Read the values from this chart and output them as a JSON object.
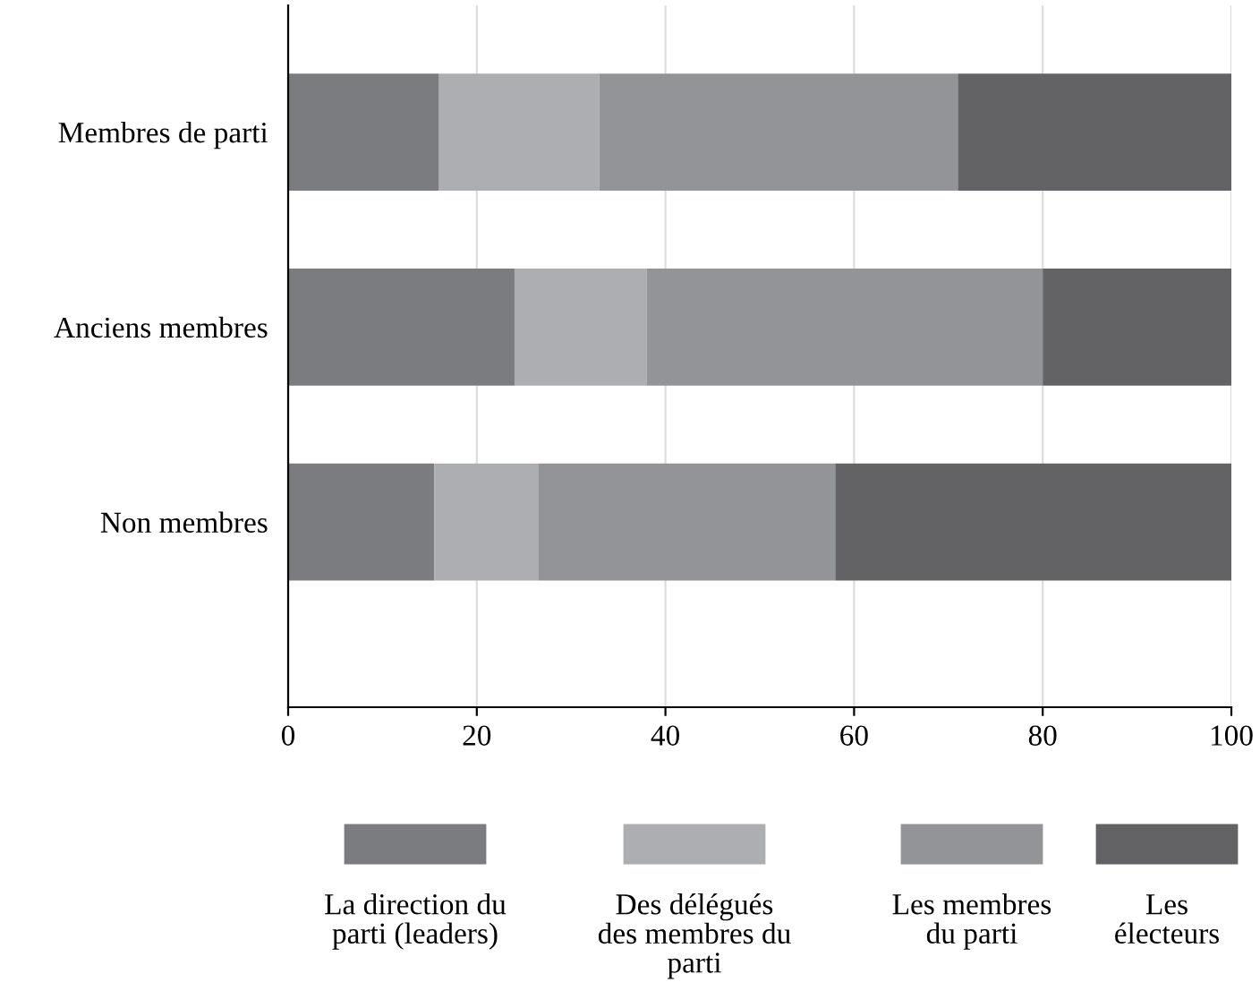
{
  "chart_data": {
    "type": "bar",
    "orientation": "horizontal",
    "stacked": true,
    "categories": [
      "Membres de parti",
      "Anciens membres",
      "Non membres"
    ],
    "series": [
      {
        "name": "La direction du parti (leaders)",
        "color": "#7b7c80",
        "values": [
          16,
          24,
          15.5
        ]
      },
      {
        "name": "Des délégués des membres du parti",
        "color": "#adaeb1",
        "values": [
          17,
          14,
          11
        ]
      },
      {
        "name": "Les membres du parti",
        "color": "#939498",
        "values": [
          38,
          42,
          31.5
        ]
      },
      {
        "name": "Les électeurs",
        "color": "#636365",
        "values": [
          29,
          20,
          42
        ]
      }
    ],
    "xlim": [
      0,
      100
    ],
    "xticks": [
      0,
      20,
      40,
      60,
      80,
      100
    ],
    "grid": "x",
    "legend": "bottom"
  }
}
